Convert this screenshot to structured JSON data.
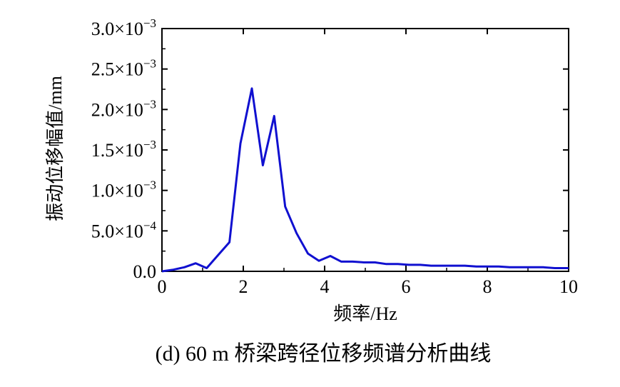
{
  "colors": {
    "line": "#1010d0",
    "axis": "#000000",
    "background": "#ffffff"
  },
  "caption": "(d) 60 m 桥梁跨径位移频谱分析曲线",
  "chart_data": {
    "type": "line",
    "xlabel": "频率/Hz",
    "ylabel": "振动位移幅值/mm",
    "xlim": [
      0,
      10
    ],
    "ylim": [
      0,
      0.003
    ],
    "grid": false,
    "x_ticks": [
      {
        "value": 0,
        "label": "0"
      },
      {
        "value": 2,
        "label": "2"
      },
      {
        "value": 4,
        "label": "4"
      },
      {
        "value": 6,
        "label": "6"
      },
      {
        "value": 8,
        "label": "8"
      },
      {
        "value": 10,
        "label": "10"
      }
    ],
    "y_ticks": [
      {
        "value": 0,
        "mantissa": "0.0",
        "exponent": ""
      },
      {
        "value": 0.0005,
        "mantissa": "5.0×10",
        "exponent": "−4"
      },
      {
        "value": 0.001,
        "mantissa": "1.0×10",
        "exponent": "−3"
      },
      {
        "value": 0.0015,
        "mantissa": "1.5×10",
        "exponent": "−3"
      },
      {
        "value": 0.002,
        "mantissa": "2.0×10",
        "exponent": "−3"
      },
      {
        "value": 0.0025,
        "mantissa": "2.5×10",
        "exponent": "−3"
      },
      {
        "value": 0.003,
        "mantissa": "3.0×10",
        "exponent": "−3"
      }
    ],
    "series": [
      {
        "x": [
          0,
          0.28,
          0.55,
          0.83,
          1.1,
          1.38,
          1.66,
          1.93,
          2.21,
          2.48,
          2.76,
          3.03,
          3.31,
          3.59,
          3.86,
          4.14,
          4.41,
          4.69,
          4.97,
          5.24,
          5.52,
          5.8,
          6.07,
          6.35,
          6.62,
          6.9,
          7.17,
          7.45,
          7.73,
          8.0,
          8.28,
          8.55,
          8.83,
          9.1,
          9.38,
          9.66,
          10.0
        ],
        "y": [
          0.0,
          2e-05,
          5e-05,
          0.0001,
          4e-05,
          0.0002,
          0.00036,
          0.00158,
          0.00226,
          0.00131,
          0.00192,
          0.0008,
          0.00047,
          0.00022,
          0.00013,
          0.00019,
          0.00012,
          0.00012,
          0.00011,
          0.00011,
          9e-05,
          9e-05,
          8e-05,
          8e-05,
          7e-05,
          7e-05,
          7e-05,
          7e-05,
          6e-05,
          6e-05,
          6e-05,
          5e-05,
          5e-05,
          5e-05,
          5e-05,
          4e-05,
          4e-05
        ]
      }
    ]
  }
}
